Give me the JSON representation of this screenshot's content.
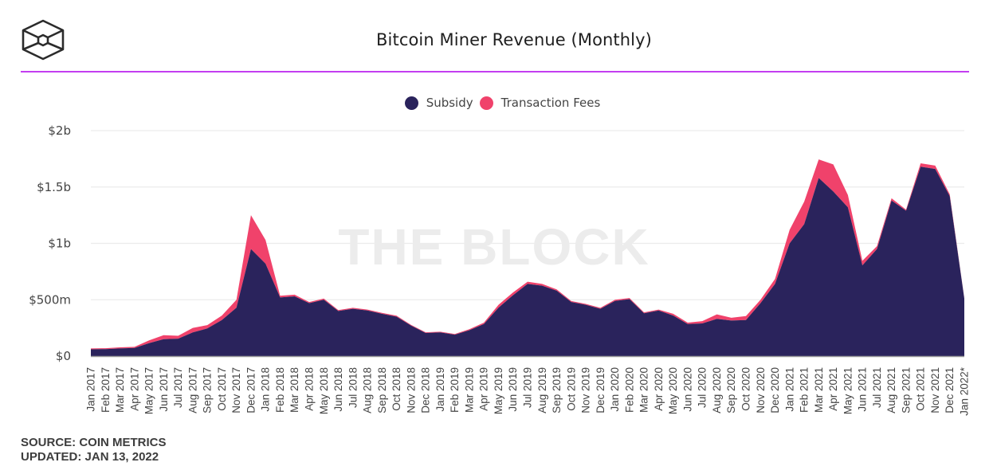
{
  "header": {
    "logo": "the-block-cube-logo",
    "title": "Bitcoin Miner Revenue (Monthly)"
  },
  "colors": {
    "subsidy": "#2a235c",
    "fees": "#f0426b",
    "accent_rule": "#c33ef0",
    "grid": "#ececec"
  },
  "watermark": "THE BLOCK",
  "footer": {
    "source": "SOURCE: COIN METRICS",
    "updated": "UPDATED: JAN 13, 2022"
  },
  "chart_data": {
    "type": "area",
    "stacked": true,
    "title": "Bitcoin Miner Revenue (Monthly)",
    "xlabel": "",
    "ylabel": "",
    "ylim": [
      0,
      2000
    ],
    "y_unit": "USD millions",
    "y_ticks": [
      {
        "value": 0,
        "label": "$0"
      },
      {
        "value": 500,
        "label": "$500m"
      },
      {
        "value": 1000,
        "label": "$1b"
      },
      {
        "value": 1500,
        "label": "$1.5b"
      },
      {
        "value": 2000,
        "label": "$2b"
      }
    ],
    "grid": true,
    "legend_position": "top-center",
    "categories": [
      "Jan 2017",
      "Feb 2017",
      "Mar 2017",
      "Apr 2017",
      "May 2017",
      "Jun 2017",
      "Jul 2017",
      "Aug 2017",
      "Sep 2017",
      "Oct 2017",
      "Nov 2017",
      "Dec 2017",
      "Jan 2018",
      "Feb 2018",
      "Mar 2018",
      "Apr 2018",
      "May 2018",
      "Jun 2018",
      "Jul 2018",
      "Aug 2018",
      "Sep 2018",
      "Oct 2018",
      "Nov 2018",
      "Dec 2018",
      "Jan 2019",
      "Feb 2019",
      "Mar 2019",
      "Apr 2019",
      "May 2019",
      "Jun 2019",
      "Jul 2019",
      "Aug 2019",
      "Sep 2019",
      "Oct 2019",
      "Nov 2019",
      "Dec 2019",
      "Jan 2020",
      "Feb 2020",
      "Mar 2020",
      "Apr 2020",
      "May 2020",
      "Jun 2020",
      "Jul 2020",
      "Aug 2020",
      "Sep 2020",
      "Oct 2020",
      "Nov 2020",
      "Dec 2020",
      "Jan 2021",
      "Feb 2021",
      "Mar 2021",
      "Apr 2021",
      "May 2021",
      "Jun 2021",
      "Jul 2021",
      "Aug 2021",
      "Sep 2021",
      "Oct 2021",
      "Nov 2021",
      "Dec 2021",
      "Jan 2022*"
    ],
    "series": [
      {
        "name": "Subsidy",
        "color": "#2a235c",
        "values": [
          60,
          62,
          68,
          72,
          115,
          150,
          155,
          210,
          245,
          320,
          430,
          950,
          820,
          520,
          530,
          470,
          500,
          400,
          420,
          405,
          375,
          350,
          270,
          205,
          210,
          190,
          230,
          285,
          430,
          540,
          640,
          625,
          580,
          480,
          455,
          420,
          490,
          505,
          380,
          405,
          360,
          285,
          290,
          330,
          315,
          320,
          470,
          640,
          1000,
          1170,
          1580,
          1460,
          1320,
          805,
          950,
          1380,
          1290,
          1680,
          1660,
          1420,
          510
        ]
      },
      {
        "name": "Transaction Fees",
        "color": "#f0426b",
        "values": [
          8,
          8,
          10,
          10,
          25,
          35,
          25,
          40,
          30,
          40,
          70,
          300,
          210,
          15,
          15,
          10,
          10,
          8,
          8,
          8,
          8,
          8,
          6,
          6,
          6,
          6,
          8,
          12,
          25,
          25,
          20,
          15,
          12,
          8,
          8,
          8,
          10,
          10,
          8,
          8,
          15,
          12,
          20,
          40,
          25,
          35,
          30,
          45,
          120,
          200,
          165,
          240,
          110,
          40,
          25,
          20,
          10,
          30,
          30,
          15,
          5
        ]
      }
    ]
  }
}
